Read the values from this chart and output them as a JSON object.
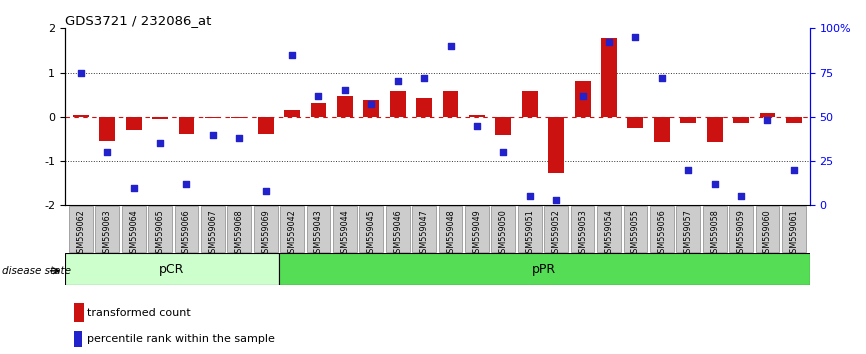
{
  "title": "GDS3721 / 232086_at",
  "samples": [
    "GSM559062",
    "GSM559063",
    "GSM559064",
    "GSM559065",
    "GSM559066",
    "GSM559067",
    "GSM559068",
    "GSM559069",
    "GSM559042",
    "GSM559043",
    "GSM559044",
    "GSM559045",
    "GSM559046",
    "GSM559047",
    "GSM559048",
    "GSM559049",
    "GSM559050",
    "GSM559051",
    "GSM559052",
    "GSM559053",
    "GSM559054",
    "GSM559055",
    "GSM559056",
    "GSM559057",
    "GSM559058",
    "GSM559059",
    "GSM559060",
    "GSM559061"
  ],
  "bar_values": [
    0.05,
    -0.55,
    -0.3,
    -0.05,
    -0.38,
    -0.02,
    -0.02,
    -0.38,
    0.15,
    0.32,
    0.48,
    0.38,
    0.58,
    0.42,
    0.58,
    0.05,
    -0.42,
    0.58,
    -1.28,
    0.82,
    1.78,
    -0.25,
    -0.58,
    -0.15,
    -0.58,
    -0.15,
    0.08,
    -0.15
  ],
  "percentile_values": [
    75,
    30,
    10,
    35,
    12,
    40,
    38,
    8,
    85,
    62,
    65,
    57,
    70,
    72,
    90,
    45,
    30,
    5,
    3,
    62,
    92,
    95,
    72,
    20,
    12,
    5,
    48,
    20
  ],
  "pCR_count": 8,
  "pPR_count": 20,
  "bar_color": "#CC1111",
  "scatter_color": "#2222CC",
  "pCR_color": "#CCFFCC",
  "pPR_color": "#55DD55",
  "pCR_label": "pCR",
  "pPR_label": "pPR",
  "disease_state_label": "disease state",
  "legend_bar_label": "transformed count",
  "legend_scatter_label": "percentile rank within the sample",
  "hline_color": "#CC1111",
  "dotline_color": "#333333",
  "xtick_bg": "#CCCCCC",
  "xtick_edge": "#888888"
}
